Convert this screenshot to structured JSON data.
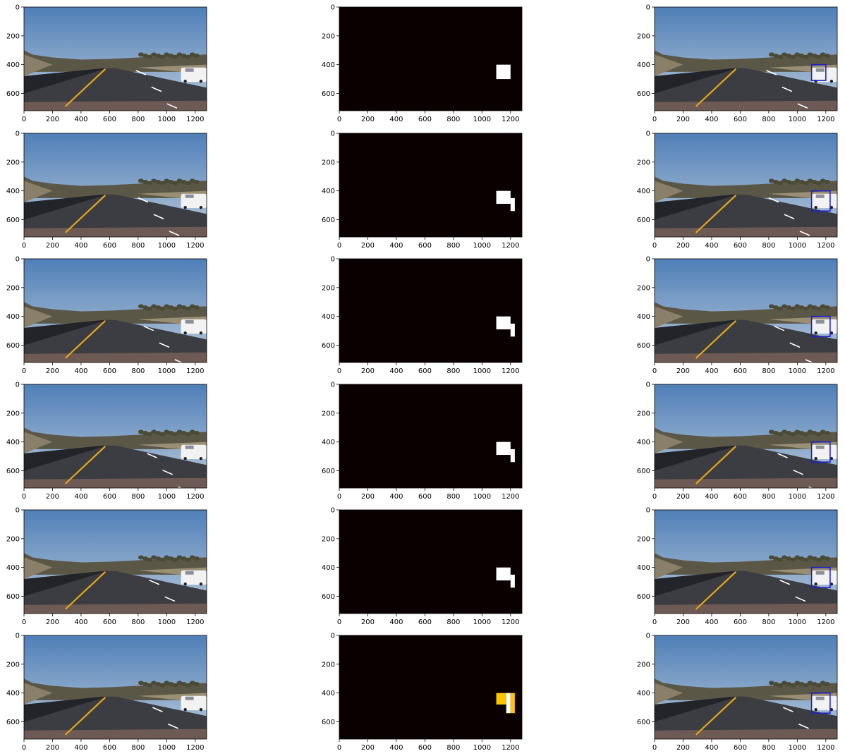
{
  "figure": {
    "rows": 6,
    "columns": [
      "camera-frame",
      "heatmap",
      "detection"
    ],
    "x_ticks": [
      0,
      200,
      400,
      600,
      800,
      1000,
      1200
    ],
    "y_ticks": [
      0,
      200,
      400,
      600
    ],
    "x_range": [
      0,
      1280
    ],
    "y_range": [
      0,
      720
    ]
  },
  "colors": {
    "sky_top": "#4f7fb8",
    "sky_bottom": "#b9c9d9",
    "hills": "#5b5747",
    "road": "#3b3d43",
    "grass": "#8a7f68",
    "lane_yellow": "#e6a817",
    "car": "#f2f2f2",
    "heatmap_bg": "#0a0000",
    "heat_white": "#ffffff",
    "heat_yellow": "#ffc400",
    "box_blue": "#1f1fd0"
  },
  "chart_data": [
    {
      "row": 1,
      "type": "heatmap",
      "blobs": [
        {
          "x": [
            1100,
            1200
          ],
          "y": [
            400,
            500
          ],
          "level": "high"
        }
      ],
      "detection_box": {
        "x": [
          1100,
          1200
        ],
        "y": [
          400,
          510
        ]
      },
      "dash_offset": 800
    },
    {
      "row": 2,
      "type": "heatmap",
      "blobs": [
        {
          "x": [
            1100,
            1200
          ],
          "y": [
            400,
            490
          ],
          "level": "high"
        },
        {
          "x": [
            1200,
            1230
          ],
          "y": [
            450,
            540
          ],
          "level": "high"
        }
      ],
      "detection_box": {
        "x": [
          1100,
          1230
        ],
        "y": [
          400,
          540
        ]
      },
      "dash_offset": 820
    },
    {
      "row": 3,
      "type": "heatmap",
      "blobs": [
        {
          "x": [
            1100,
            1200
          ],
          "y": [
            400,
            490
          ],
          "level": "high"
        },
        {
          "x": [
            1200,
            1230
          ],
          "y": [
            450,
            540
          ],
          "level": "high"
        }
      ],
      "detection_box": {
        "x": [
          1100,
          1230
        ],
        "y": [
          400,
          540
        ]
      },
      "dash_offset": 870
    },
    {
      "row": 4,
      "type": "heatmap",
      "blobs": [
        {
          "x": [
            1100,
            1200
          ],
          "y": [
            400,
            490
          ],
          "level": "high"
        },
        {
          "x": [
            1200,
            1230
          ],
          "y": [
            450,
            540
          ],
          "level": "high"
        }
      ],
      "detection_box": {
        "x": [
          1100,
          1230
        ],
        "y": [
          400,
          540
        ]
      },
      "dash_offset": 900
    },
    {
      "row": 5,
      "type": "heatmap",
      "blobs": [
        {
          "x": [
            1100,
            1200
          ],
          "y": [
            400,
            490
          ],
          "level": "high"
        },
        {
          "x": [
            1200,
            1230
          ],
          "y": [
            450,
            540
          ],
          "level": "high"
        }
      ],
      "detection_box": {
        "x": [
          1100,
          1230
        ],
        "y": [
          400,
          540
        ]
      },
      "dash_offset": 920
    },
    {
      "row": 6,
      "type": "heatmap",
      "blobs": [
        {
          "x": [
            1100,
            1170
          ],
          "y": [
            400,
            480
          ],
          "level": "medium"
        },
        {
          "x": [
            1170,
            1200
          ],
          "y": [
            400,
            540
          ],
          "level": "high"
        },
        {
          "x": [
            1200,
            1230
          ],
          "y": [
            400,
            540
          ],
          "level": "medium"
        }
      ],
      "detection_box": {
        "x": [
          1100,
          1230
        ],
        "y": [
          400,
          540
        ]
      },
      "dash_offset": 950
    }
  ]
}
